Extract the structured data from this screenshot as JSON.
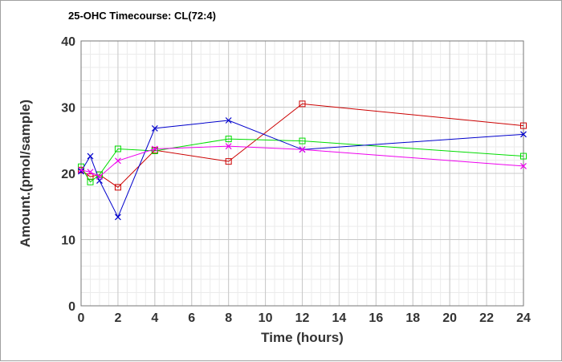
{
  "chart_data": {
    "type": "line",
    "title": "25-OHC Timecourse: CL(72:4)",
    "xlabel": "Time (hours)",
    "ylabel": "Amount.(pmol/sample)",
    "xlim": [
      0,
      24
    ],
    "ylim": [
      0,
      40
    ],
    "x_ticks": [
      0,
      2,
      4,
      6,
      8,
      10,
      12,
      14,
      16,
      18,
      20,
      22,
      24
    ],
    "y_ticks": [
      0,
      10,
      20,
      30,
      40
    ],
    "grid": true,
    "legend": "none",
    "series": [
      {
        "color": "#cc0000",
        "marker": "square",
        "x": [
          0,
          0.5,
          1,
          2,
          4,
          8,
          12,
          24
        ],
        "y": [
          20.5,
          19.5,
          19.8,
          17.9,
          23.5,
          21.8,
          30.5,
          27.2
        ]
      },
      {
        "color": "#00dd00",
        "marker": "square",
        "x": [
          0,
          0.5,
          1,
          2,
          4,
          8,
          12,
          24
        ],
        "y": [
          21.0,
          18.7,
          19.8,
          23.7,
          23.4,
          25.2,
          24.9,
          22.6
        ]
      },
      {
        "color": "#0000cc",
        "marker": "x",
        "x": [
          0,
          0.5,
          1,
          2,
          4,
          8,
          12,
          24
        ],
        "y": [
          20.3,
          22.6,
          18.9,
          13.4,
          26.8,
          28.0,
          23.6,
          25.9
        ]
      },
      {
        "color": "#ee00ee",
        "marker": "x",
        "x": [
          0,
          0.5,
          1,
          2,
          4,
          8,
          12,
          24
        ],
        "y": [
          20.5,
          20.2,
          19.5,
          21.9,
          23.7,
          24.1,
          23.6,
          21.1
        ]
      }
    ]
  }
}
